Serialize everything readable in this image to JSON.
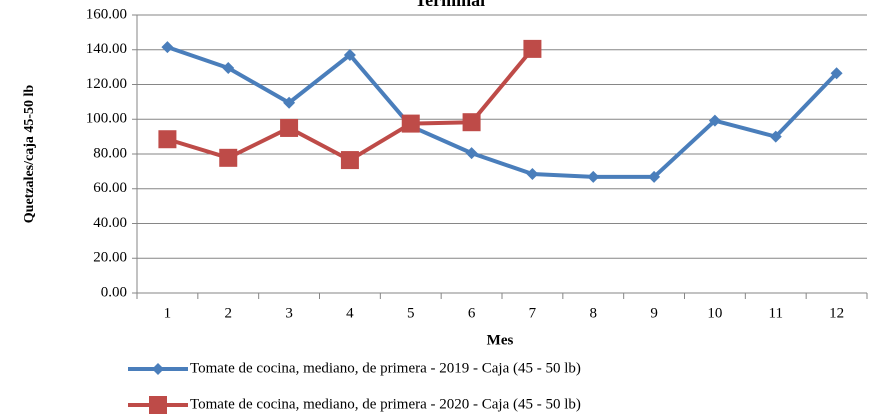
{
  "chart_data": {
    "type": "line",
    "title": "Terminal",
    "x_label": "Mes",
    "y_label": "Quetzales/caja 45-50 lb",
    "categories": [
      "1",
      "2",
      "3",
      "4",
      "5",
      "6",
      "7",
      "8",
      "9",
      "10",
      "11",
      "12"
    ],
    "series": [
      {
        "name": "Tomate de cocina, mediano, de primera - 2019 - Caja (45 - 50 lb)",
        "color": "#4a7ebb",
        "marker": "diamond",
        "values": [
          141.5,
          129.5,
          109.5,
          137,
          96,
          80.5,
          68.5,
          66.8,
          66.8,
          99.2,
          90,
          126.5
        ]
      },
      {
        "name": "Tomate de cocina, mediano, de primera - 2020 - Caja (45 - 50 lb)",
        "color": "#be4b48",
        "marker": "square",
        "values": [
          88.5,
          77.8,
          95,
          76.5,
          97.5,
          98.3,
          140.5,
          null,
          null,
          null,
          null,
          null
        ]
      }
    ],
    "ylim": [
      0,
      160
    ],
    "yticks": [
      {
        "value": 0,
        "label": "0.00"
      },
      {
        "value": 20,
        "label": "20.00"
      },
      {
        "value": 40,
        "label": "40.00"
      },
      {
        "value": 60,
        "label": "60.00"
      },
      {
        "value": 80,
        "label": "80.00"
      },
      {
        "value": 100,
        "label": "100.00"
      },
      {
        "value": 120,
        "label": "120.00"
      },
      {
        "value": 140,
        "label": "140.00"
      },
      {
        "value": 160,
        "label": "160.00"
      }
    ],
    "grid": true,
    "legend": "bottom"
  }
}
